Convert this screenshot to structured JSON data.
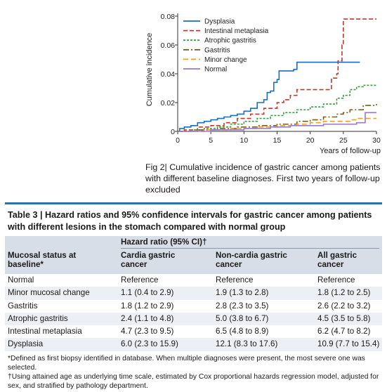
{
  "chart_data": {
    "type": "line",
    "xlabel": "Years of follow-up",
    "ylabel": "Cumulative incidence",
    "xlim": [
      0,
      30
    ],
    "ylim": [
      0,
      0.08
    ],
    "x_ticks": [
      "0",
      "5",
      "10",
      "15",
      "20",
      "25",
      "30"
    ],
    "y_ticks": [
      "0",
      "0.02",
      "0.04",
      "0.06",
      "0.08"
    ],
    "grid": false,
    "legend_position": "top-left",
    "series": [
      {
        "name": "Dysplasia",
        "color": "#1f6db5",
        "dash": "solid",
        "points": [
          [
            0,
            0
          ],
          [
            0.3,
            0.002
          ],
          [
            1,
            0.003
          ],
          [
            2,
            0.004
          ],
          [
            3,
            0.006
          ],
          [
            4,
            0.007
          ],
          [
            5,
            0.008
          ],
          [
            6,
            0.009
          ],
          [
            7,
            0.01
          ],
          [
            8,
            0.011
          ],
          [
            9,
            0.012
          ],
          [
            10,
            0.014
          ],
          [
            11,
            0.016
          ],
          [
            12,
            0.02
          ],
          [
            13,
            0.022
          ],
          [
            13.5,
            0.027
          ],
          [
            14,
            0.028
          ],
          [
            14.5,
            0.034
          ],
          [
            15,
            0.036
          ],
          [
            15.3,
            0.042
          ],
          [
            17,
            0.042
          ],
          [
            17.5,
            0.043
          ],
          [
            18,
            0.048
          ],
          [
            27.5,
            0.048
          ]
        ]
      },
      {
        "name": "Intestinal metaplasia",
        "color": "#c0392b",
        "dash": "6,3",
        "points": [
          [
            0,
            0
          ],
          [
            1,
            0.001
          ],
          [
            3,
            0.003
          ],
          [
            5,
            0.004
          ],
          [
            7,
            0.006
          ],
          [
            9,
            0.009
          ],
          [
            11,
            0.012
          ],
          [
            13,
            0.016
          ],
          [
            15,
            0.02
          ],
          [
            16,
            0.022
          ],
          [
            17,
            0.025
          ],
          [
            18,
            0.029
          ],
          [
            23,
            0.029
          ],
          [
            23.2,
            0.037
          ],
          [
            24,
            0.04
          ],
          [
            24.2,
            0.049
          ],
          [
            24.8,
            0.06
          ],
          [
            25,
            0.078
          ],
          [
            30,
            0.078
          ]
        ]
      },
      {
        "name": "Atrophic gastritis",
        "color": "#3a9a4a",
        "dash": "3,2",
        "points": [
          [
            0,
            0
          ],
          [
            2,
            0.001
          ],
          [
            4,
            0.002
          ],
          [
            6,
            0.003
          ],
          [
            8,
            0.005
          ],
          [
            10,
            0.007
          ],
          [
            12,
            0.009
          ],
          [
            14,
            0.011
          ],
          [
            16,
            0.013
          ],
          [
            18,
            0.015
          ],
          [
            20,
            0.017
          ],
          [
            22,
            0.019
          ],
          [
            24,
            0.023
          ],
          [
            25,
            0.025
          ],
          [
            26,
            0.029
          ],
          [
            27,
            0.031
          ],
          [
            28,
            0.032
          ],
          [
            30,
            0.032
          ]
        ]
      },
      {
        "name": "Gastritis",
        "color": "#7a5a1e",
        "dash": "8,3,2,3",
        "points": [
          [
            0,
            0
          ],
          [
            3,
            0.001
          ],
          [
            6,
            0.002
          ],
          [
            9,
            0.003
          ],
          [
            12,
            0.004
          ],
          [
            15,
            0.005
          ],
          [
            18,
            0.007
          ],
          [
            20,
            0.008
          ],
          [
            22,
            0.01
          ],
          [
            24,
            0.012
          ],
          [
            25,
            0.013
          ],
          [
            26,
            0.015
          ],
          [
            28,
            0.018
          ],
          [
            30,
            0.019
          ]
        ]
      },
      {
        "name": "Minor change",
        "color": "#e8a030",
        "dash": "7,4",
        "points": [
          [
            0,
            0
          ],
          [
            4,
            0.001
          ],
          [
            8,
            0.002
          ],
          [
            12,
            0.003
          ],
          [
            15,
            0.004
          ],
          [
            18,
            0.005
          ],
          [
            20,
            0.006
          ],
          [
            22,
            0.007
          ],
          [
            24,
            0.007
          ],
          [
            26,
            0.008
          ],
          [
            27,
            0.009
          ],
          [
            30,
            0.009
          ]
        ]
      },
      {
        "name": "Normal",
        "color": "#9a7ac8",
        "dash": "solid",
        "points": [
          [
            0,
            0
          ],
          [
            5,
            0.001
          ],
          [
            10,
            0.002
          ],
          [
            14,
            0.003
          ],
          [
            17,
            0.004
          ],
          [
            20,
            0.004
          ],
          [
            22,
            0.005
          ],
          [
            25,
            0.005
          ],
          [
            27,
            0.006
          ],
          [
            28,
            0.006
          ],
          [
            28.3,
            0.013
          ],
          [
            30,
            0.013
          ]
        ]
      }
    ]
  },
  "figure": {
    "label": "Fig 2",
    "caption": "Cumulative incidence of gastric cancer among patients with different baseline diagnoses. First two years of follow-up excluded"
  },
  "table": {
    "label": "Table 3",
    "title": "Hazard ratios and 95% confidence intervals for gastric cancer among patients with different lesions in the stomach compared with normal group",
    "hazard_header": "Hazard ratio (95% CI)†",
    "col_header": {
      "status": "Mucosal status at baseline*",
      "cardia": "Cardia gastric cancer",
      "noncardia": "Non-cardia gastric cancer",
      "all": "All gastric cancer"
    },
    "rows": [
      [
        "Normal",
        "Reference",
        "Reference",
        "Reference"
      ],
      [
        "Minor mucosal change",
        "1.1 (0.4 to 2.9)",
        "1.9 (1.3 to 2.8)",
        "1.8 (1.2 to 2.5)"
      ],
      [
        "Gastritis",
        "1.8 (1.2 to 2.9)",
        "2.8 (2.3 to 3.5)",
        "2.6 (2.2 to 3.2)"
      ],
      [
        "Atrophic gastritis",
        "2.4 (1.1 to 4.8)",
        "5.0 (3.8 to 6.7)",
        "4.5 (3.5 to 5.8)"
      ],
      [
        "Intestinal metaplasia",
        "4.7 (2.3 to 9.5)",
        "6.5 (4.8 to 8.9)",
        "6.2 (4.7 to 8.2)"
      ],
      [
        "Dysplasia",
        "6.0 (2.3 to 15.9)",
        "12.1 (8.3 to 17.6)",
        "10.9 (7.7 to 15.4)"
      ]
    ],
    "footnote_1": "*Defined as first biopsy identified in database. When multiple diagnoses were present, the most severe one was selected.",
    "footnote_2": "†Using attained age as underlying time scale, estimated by Cox proportional hazards regression model, adjusted for sex, and stratified by pathology department."
  }
}
